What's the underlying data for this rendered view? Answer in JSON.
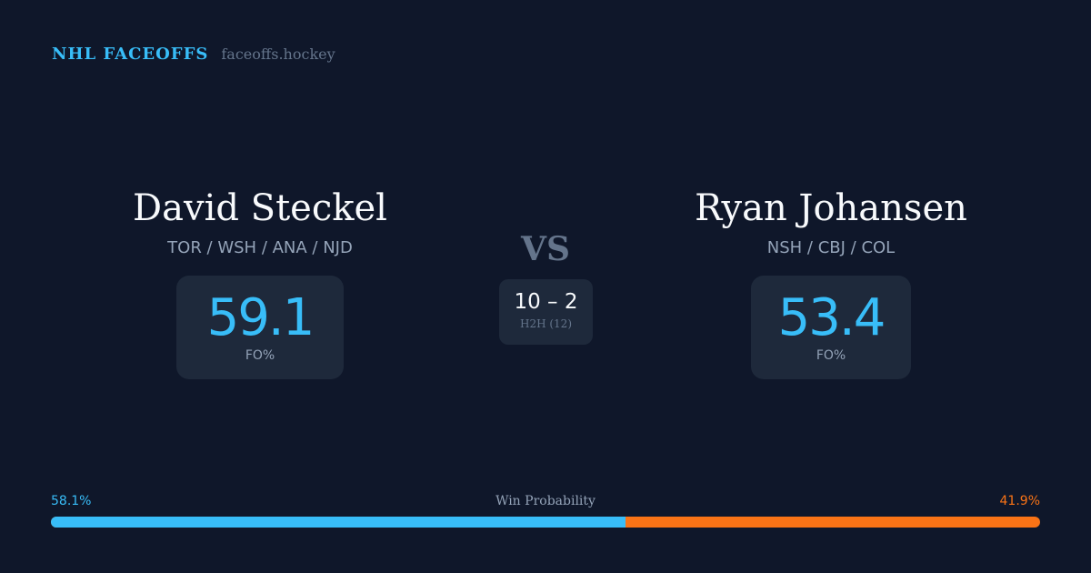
{
  "brand": {
    "title": "NHL FACEOFFS",
    "site": "faceoffs.hockey"
  },
  "left": {
    "name": "David Steckel",
    "teams": "TOR / WSH / ANA / NJD",
    "fo_pct": "59.1",
    "fo_label": "FO%"
  },
  "right": {
    "name": "Ryan Johansen",
    "teams": "NSH / CBJ / COL",
    "fo_pct": "53.4",
    "fo_label": "FO%"
  },
  "vs": "VS",
  "h2h": {
    "score": "10 – 2",
    "label": "H2H (12)"
  },
  "win_probability": {
    "label": "Win Probability",
    "left": "58.1%",
    "right": "41.9%",
    "left_value": 58.1
  },
  "colors": {
    "background": "#0f172a",
    "accent_left": "#38bdf8",
    "accent_right": "#f97316",
    "card": "#1e293b"
  }
}
